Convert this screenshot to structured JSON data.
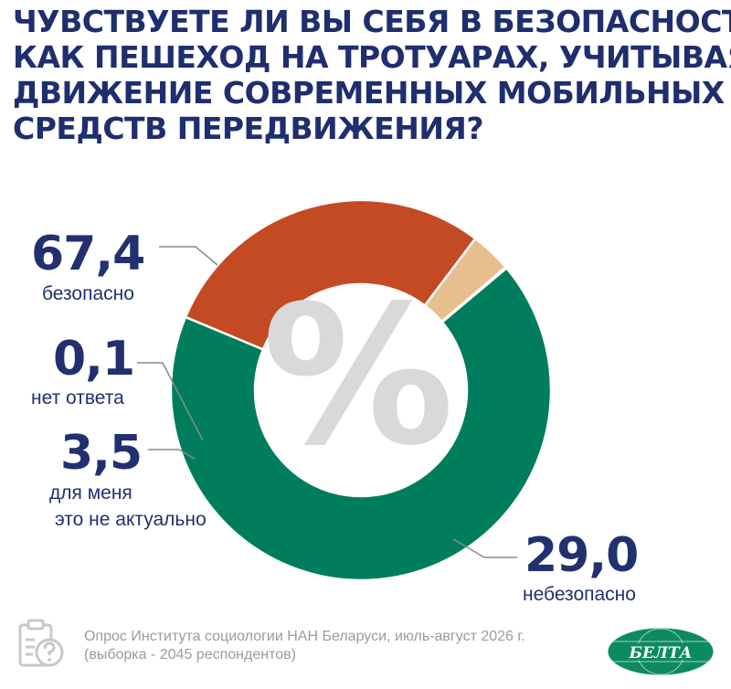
{
  "title_lines": [
    "ЧУВСТВУЕТЕ ЛИ ВЫ СЕБЯ В БЕЗОПАСНОСТИ",
    "КАК ПЕШЕХОД НА ТРОТУАРАХ, УЧИТЫВАЯ",
    "ДВИЖЕНИЕ СОВРЕМЕННЫХ МОБИЛЬНЫХ",
    "СРЕДСТВ ПЕРЕДВИЖЕНИЯ?"
  ],
  "chart_data": {
    "type": "pie",
    "donut": true,
    "center_symbol": "%",
    "slices": [
      {
        "value": 67.4,
        "value_label": "67,4",
        "label_lines": [
          "безопасно"
        ],
        "color": "#007d5e"
      },
      {
        "value": 29.0,
        "value_label": "29,0",
        "label_lines": [
          "небезопасно"
        ],
        "color": "#c44a24"
      },
      {
        "value": 3.5,
        "value_label": "3,5",
        "label_lines": [
          "для меня",
          "это не актуально"
        ],
        "color": "#e7bf8e"
      },
      {
        "value": 0.1,
        "value_label": "0,1",
        "label_lines": [
          "нет ответа"
        ],
        "color": "#22306f"
      }
    ]
  },
  "source_lines": [
    "Опрос Института социологии НАН Беларуси, июль-август 2026 г.",
    "(выборка - 2045 респондентов)"
  ],
  "logo_text": "БЕЛТА",
  "icons": {
    "source": "clipboard-question-icon",
    "logo": "belta-logo"
  }
}
